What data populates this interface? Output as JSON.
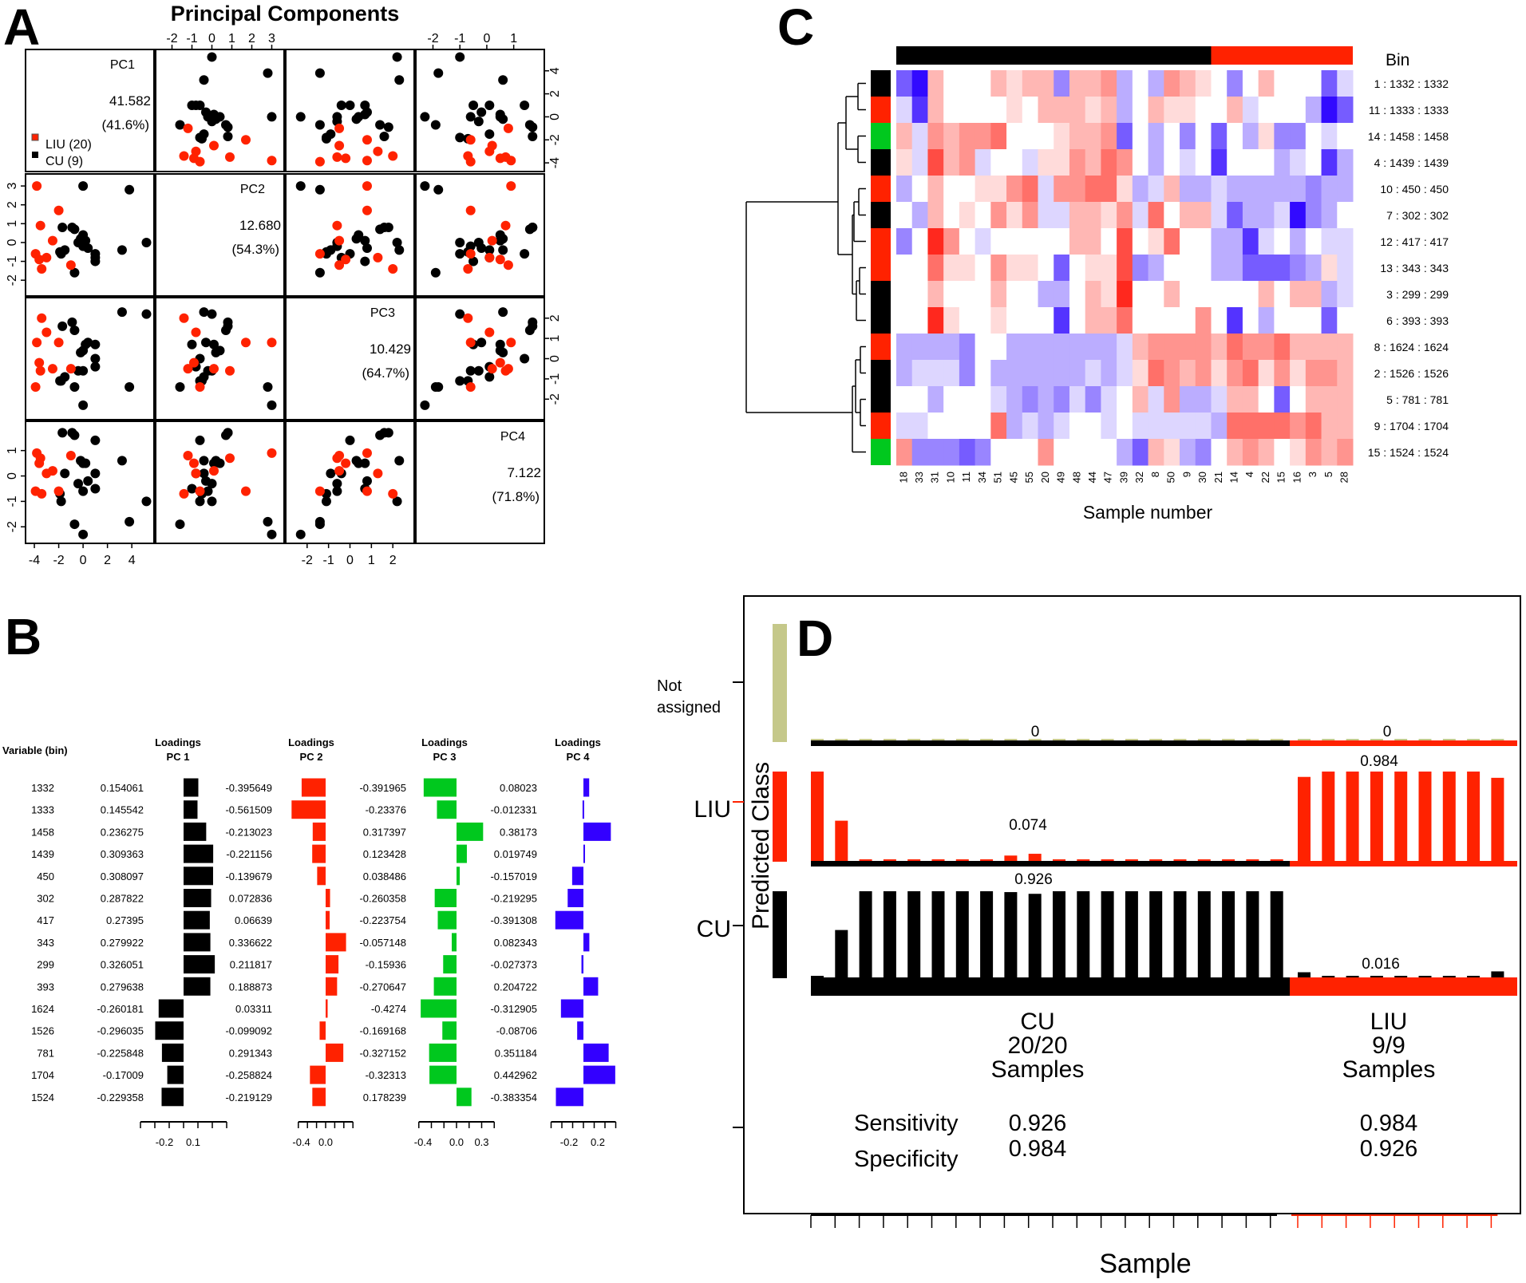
{
  "panel_labels": {
    "a": "A",
    "b": "B",
    "c": "C",
    "d": "D"
  },
  "colors": {
    "liu": "#ff2200",
    "cu": "#000000",
    "green": "#00c81e",
    "blue": "#3300ff",
    "not_assigned": "#c5c88a",
    "heat_pos": "#ff3322",
    "heat_neg": "#3311ff"
  },
  "chart_data": [
    {
      "id": "A",
      "type": "scatter",
      "title": "Principal Components",
      "legend": {
        "placement": "bottom-left of PC1 cell",
        "entries": [
          {
            "label": "LIU (20)",
            "color": "#ff2200"
          },
          {
            "label": "CU (9)",
            "color": "#000000"
          }
        ]
      },
      "components": [
        {
          "name": "PC1",
          "eigenvalue": "41.582",
          "cumulative": "(41.6%)"
        },
        {
          "name": "PC2",
          "eigenvalue": "12.680",
          "cumulative": "(54.3%)"
        },
        {
          "name": "PC3",
          "eigenvalue": "10.429",
          "cumulative": "(64.7%)"
        },
        {
          "name": "PC4",
          "eigenvalue": "7.122",
          "cumulative": "(71.8%)"
        }
      ],
      "ranges": {
        "PC1": [
          -4.2,
          5.3
        ],
        "PC2": [
          -2.5,
          3.3
        ],
        "PC3": [
          -2.7,
          2.7
        ],
        "PC4": [
          -2.4,
          1.9
        ]
      },
      "axis_ticks": {
        "PC1": [
          "-4",
          "-2",
          "0",
          "2",
          "4"
        ],
        "PC2": [
          "-2",
          "-1",
          "0",
          "1",
          "2",
          "3"
        ],
        "PC3": [
          "-2",
          "-1",
          "0",
          "1",
          "2"
        ],
        "PC4": [
          "-2",
          "-1",
          "0",
          "1"
        ]
      },
      "points": [
        {
          "g": "CU",
          "pc1": 0.0,
          "pc2": 3.0,
          "pc3": -2.3,
          "pc4": -2.3
        },
        {
          "g": "CU",
          "pc1": 3.8,
          "pc2": 2.8,
          "pc3": -1.4,
          "pc4": -1.8
        },
        {
          "g": "CU",
          "pc1": -1.7,
          "pc2": 0.8,
          "pc3": 1.6,
          "pc4": 1.7
        },
        {
          "g": "CU",
          "pc1": -0.9,
          "pc2": 0.8,
          "pc3": 1.8,
          "pc4": 1.7
        },
        {
          "g": "CU",
          "pc1": -0.7,
          "pc2": 0.7,
          "pc3": 1.4,
          "pc4": 1.6
        },
        {
          "g": "CU",
          "pc1": 0.0,
          "pc2": 0.4,
          "pc3": 0.4,
          "pc4": 0.5
        },
        {
          "g": "CU",
          "pc1": -0.2,
          "pc2": 0.2,
          "pc3": 0.3,
          "pc4": 0.6
        },
        {
          "g": "CU",
          "pc1": 0.2,
          "pc2": 0.1,
          "pc3": 0.7,
          "pc4": 0.5
        },
        {
          "g": "CU",
          "pc1": -0.4,
          "pc2": 0.0,
          "pc3": -0.6,
          "pc4": -0.3
        },
        {
          "g": "CU",
          "pc1": 0.0,
          "pc2": -0.2,
          "pc3": -0.6,
          "pc4": -0.6
        },
        {
          "g": "CU",
          "pc1": 0.4,
          "pc2": -0.3,
          "pc3": 0.8,
          "pc4": -0.2
        },
        {
          "g": "CU",
          "pc1": -1.9,
          "pc2": -0.5,
          "pc3": -1.1,
          "pc4": -0.7
        },
        {
          "g": "CU",
          "pc1": -1.8,
          "pc2": -0.6,
          "pc3": -1.1,
          "pc4": -1.0
        },
        {
          "g": "CU",
          "pc1": -1.5,
          "pc2": -0.4,
          "pc3": -0.9,
          "pc4": 0.1
        },
        {
          "g": "CU",
          "pc1": 1.0,
          "pc2": -0.6,
          "pc3": 0.0,
          "pc4": 1.4
        },
        {
          "g": "CU",
          "pc1": 1.0,
          "pc2": -0.8,
          "pc3": -0.4,
          "pc4": 0.1
        },
        {
          "g": "CU",
          "pc1": 1.0,
          "pc2": -1.0,
          "pc3": 0.7,
          "pc4": -0.5
        },
        {
          "g": "CU",
          "pc1": 3.2,
          "pc2": -0.4,
          "pc3": 2.3,
          "pc4": 0.6
        },
        {
          "g": "CU",
          "pc1": -0.7,
          "pc2": -1.6,
          "pc3": -1.4,
          "pc4": -1.9
        },
        {
          "g": "CU",
          "pc1": 5.2,
          "pc2": 0.0,
          "pc3": 2.2,
          "pc4": -1.0
        },
        {
          "g": "LIU",
          "pc1": -3.8,
          "pc2": 3.0,
          "pc3": 0.8,
          "pc4": 0.9
        },
        {
          "g": "LIU",
          "pc1": -2.0,
          "pc2": 1.7,
          "pc3": 0.8,
          "pc4": -0.6
        },
        {
          "g": "LIU",
          "pc1": -3.5,
          "pc2": 0.9,
          "pc3": -0.6,
          "pc4": 0.7
        },
        {
          "g": "LIU",
          "pc1": -2.5,
          "pc2": 0.1,
          "pc3": -0.5,
          "pc4": 0.2
        },
        {
          "g": "LIU",
          "pc1": -3.9,
          "pc2": -0.6,
          "pc3": -1.4,
          "pc4": -0.6
        },
        {
          "g": "LIU",
          "pc1": -3.6,
          "pc2": -0.9,
          "pc3": -0.2,
          "pc4": 0.5
        },
        {
          "g": "LIU",
          "pc1": -3.0,
          "pc2": -0.8,
          "pc3": 1.3,
          "pc4": 0.1
        },
        {
          "g": "LIU",
          "pc1": -3.4,
          "pc2": -1.4,
          "pc3": 2.0,
          "pc4": -0.7
        },
        {
          "g": "LIU",
          "pc1": -1.0,
          "pc2": -1.2,
          "pc3": -0.5,
          "pc4": 0.8
        }
      ]
    },
    {
      "id": "B",
      "type": "bar",
      "title": "",
      "header_variable": "Variable (bin)",
      "header_loadings": "Loadings",
      "components": [
        "PC 1",
        "PC 2",
        "PC 3",
        "PC 4"
      ],
      "colors": [
        "#000000",
        "#ff2200",
        "#00c81e",
        "#3300ff"
      ],
      "categories": [
        "1332",
        "1333",
        "1458",
        "1439",
        "450",
        "302",
        "417",
        "343",
        "299",
        "393",
        "1624",
        "1526",
        "781",
        "1704",
        "1524"
      ],
      "series": [
        {
          "name": "PC 1",
          "values": [
            "0.154061",
            "0.145542",
            "0.236275",
            "0.309363",
            "0.308097",
            "0.287822",
            "0.27395",
            "0.279922",
            "0.326051",
            "0.279638",
            "-0.260181",
            "-0.296035",
            "-0.225848",
            "-0.17009",
            "-0.229358"
          ]
        },
        {
          "name": "PC 2",
          "values": [
            "-0.395649",
            "-0.561509",
            "-0.213023",
            "-0.221156",
            "-0.139679",
            "0.072836",
            "0.06639",
            "0.336622",
            "0.211817",
            "0.188873",
            "0.03311",
            "-0.099092",
            "0.291343",
            "-0.258824",
            "-0.219129"
          ]
        },
        {
          "name": "PC 3",
          "values": [
            "-0.391965",
            "-0.23376",
            "0.317397",
            "0.123428",
            "0.038486",
            "-0.260358",
            "-0.223754",
            "-0.057148",
            "-0.15936",
            "-0.270647",
            "-0.4274",
            "-0.169168",
            "-0.327152",
            "-0.32313",
            "0.178239"
          ]
        },
        {
          "name": "PC 4",
          "values": [
            "0.08023",
            "-0.012331",
            "0.38173",
            "0.019749",
            "-0.157019",
            "-0.219295",
            "-0.391308",
            "0.082343",
            "-0.027373",
            "0.204722",
            "-0.312905",
            "-0.08706",
            "0.351184",
            "0.442962",
            "-0.383354"
          ]
        }
      ],
      "axis_ticks": [
        [
          "-0.2",
          "0.1"
        ],
        [
          "-0.4",
          "0.0"
        ],
        [
          "-0.4",
          "0.0",
          "0.3"
        ],
        [
          "-0.2",
          "0.2"
        ]
      ]
    },
    {
      "id": "C",
      "type": "heatmap",
      "xlabel": "Sample number",
      "row_header": "Bin",
      "x": [
        "18",
        "33",
        "31",
        "10",
        "11",
        "34",
        "51",
        "45",
        "55",
        "20",
        "49",
        "48",
        "44",
        "47",
        "39",
        "32",
        "8",
        "50",
        "9",
        "30",
        "21",
        "14",
        "4",
        "22",
        "15",
        "16",
        "3",
        "5",
        "28"
      ],
      "column_groups": [
        {
          "name": "CU",
          "count": 20,
          "color": "#000000"
        },
        {
          "name": "LIU",
          "count": 9,
          "color": "#ff2200"
        }
      ],
      "rows": [
        "1 : 1332 : 1332",
        "11 : 1333 : 1333",
        "14 : 1458 : 1458",
        "4 : 1439 : 1439",
        "10 :   450 : 450",
        "7 :   302 : 302",
        "12 :   417 : 417",
        "13 :   343 : 343",
        "3 :   299 : 299",
        "6 :   393 : 393",
        "8 : 1624 : 1624",
        "2 : 1526 : 1526",
        "5 :   781 : 781",
        "9 : 1704 : 1704",
        "15 : 1524 : 1524"
      ],
      "row_colors": [
        "#000000",
        "#ff2200",
        "#00c81e",
        "#000000",
        "#ff2200",
        "#000000",
        "#ff2200",
        "#ff2200",
        "#000000",
        "#000000",
        "#ff2200",
        "#000000",
        "#000000",
        "#ff2200",
        "#00c81e"
      ],
      "value_range": [
        -3,
        3
      ],
      "values": [
        [
          -2,
          -3,
          1,
          0,
          0,
          0,
          1,
          0.5,
          1,
          1,
          -1.5,
          1,
          1,
          1.5,
          -1,
          0,
          -1,
          1.5,
          1,
          0.5,
          0,
          -1.5,
          0,
          1,
          0,
          0,
          0,
          -2,
          -0.5
        ],
        [
          -0.5,
          -2.5,
          1,
          0,
          0,
          0,
          0,
          0.5,
          0,
          1,
          1,
          1,
          0.5,
          1,
          -1,
          0,
          1,
          0.5,
          0.5,
          0,
          0,
          1,
          -0.5,
          0,
          0,
          0,
          -1,
          -3,
          -2
        ],
        [
          1,
          -0.5,
          1.5,
          1,
          1.5,
          1.5,
          2,
          0,
          0,
          0,
          0.5,
          1,
          1,
          1.5,
          -2,
          0,
          -1,
          0,
          -1.5,
          0,
          -2,
          0,
          -1,
          0.5,
          -1.5,
          -1.5,
          0,
          -0.5,
          0
        ],
        [
          0.5,
          -0.5,
          2.5,
          1,
          1.5,
          -0.5,
          0,
          0,
          -0.5,
          0.5,
          0.5,
          1.5,
          1,
          2,
          1.5,
          0,
          -1,
          0,
          -0.5,
          0,
          -2.5,
          0,
          0,
          0,
          -1,
          -0.5,
          0,
          -2.5,
          -1
        ],
        [
          -1,
          0,
          1,
          0,
          0,
          0.5,
          0.5,
          1.5,
          2,
          -0.5,
          1.5,
          1.5,
          2,
          2,
          0.5,
          -1,
          -0.5,
          1,
          -1,
          -1,
          -0.5,
          -1,
          -1,
          -1,
          -1,
          -1,
          -1.5,
          -1,
          -1
        ],
        [
          0,
          -1,
          1,
          0,
          0.5,
          0,
          1.5,
          0.5,
          1.5,
          -0.5,
          -0.5,
          1,
          1,
          0.5,
          1.5,
          -0.5,
          2,
          0,
          1,
          1,
          -0.5,
          -2,
          -1,
          -1,
          -0.5,
          -3,
          -1.5,
          -1,
          0
        ],
        [
          -1.5,
          0,
          3,
          1.5,
          0,
          -0.5,
          0,
          0,
          0,
          0,
          0,
          1,
          1,
          0,
          2.5,
          0,
          0.5,
          2,
          0,
          0,
          -1,
          -1,
          -2.5,
          -0.5,
          0,
          -1,
          0,
          -0.5,
          -0.5
        ],
        [
          0,
          0,
          2,
          0.5,
          0.5,
          0,
          1.5,
          0.5,
          0.5,
          0,
          -2,
          0,
          0.5,
          0.5,
          2.5,
          -1.5,
          -1,
          0,
          0,
          0,
          -1,
          -1,
          -2,
          -2,
          -2,
          -1.5,
          -1,
          0.5,
          -0.5
        ],
        [
          0,
          0,
          1,
          0,
          0,
          0,
          1,
          0,
          0,
          -1,
          -1,
          0,
          1,
          0.5,
          3,
          0,
          0,
          1,
          0,
          0,
          0,
          0,
          0,
          1,
          0,
          1,
          1,
          -1,
          -0.5
        ],
        [
          0,
          0,
          3,
          0.5,
          0,
          0,
          0.5,
          0,
          0,
          0,
          -2.5,
          0,
          1,
          1,
          2,
          0,
          0,
          0,
          0,
          1.5,
          0,
          -2.5,
          0,
          -1,
          0,
          0,
          0,
          -2,
          0
        ],
        [
          -1,
          -1,
          -1,
          -1,
          -1.5,
          0,
          0,
          -1,
          -1,
          -1,
          -1,
          -1,
          -1,
          -1,
          -0.5,
          1,
          1.5,
          1.5,
          1.5,
          1.5,
          1,
          2,
          1.5,
          1.5,
          2,
          1,
          1,
          1,
          1
        ],
        [
          -1,
          -0.5,
          -0.5,
          -0.5,
          -1.5,
          0,
          -1,
          -1,
          -1,
          -1,
          -1,
          -1,
          -0.5,
          -1,
          -0.5,
          0.5,
          2,
          1.5,
          1,
          1.5,
          0.5,
          1.5,
          2,
          0.5,
          1.5,
          0.5,
          1.5,
          1.5,
          1
        ],
        [
          0,
          0,
          -1,
          0,
          0,
          0,
          -0.5,
          -1,
          -1.5,
          -1,
          -1.5,
          -0.5,
          -1.5,
          -0.5,
          0,
          1,
          -0.5,
          1.5,
          -1,
          -1,
          -0.5,
          1,
          1,
          0,
          -2,
          0,
          1,
          1,
          1
        ],
        [
          -0.5,
          -0.5,
          0,
          0,
          0,
          0,
          2,
          -1,
          -0.5,
          -1,
          -0.5,
          0,
          0,
          -0.5,
          0,
          -0.5,
          -0.5,
          -0.5,
          -0.5,
          -0.5,
          -1,
          2,
          2,
          2,
          2,
          1.5,
          2,
          1,
          1
        ],
        [
          1.5,
          -1.5,
          -1.5,
          -1.5,
          -2,
          -1.5,
          0,
          0,
          0,
          1.5,
          0,
          0,
          0,
          0,
          -1,
          -2,
          1,
          0.5,
          -1,
          -1.5,
          0,
          1,
          1.5,
          1,
          0,
          0.5,
          1.5,
          1,
          1.5
        ]
      ]
    },
    {
      "id": "D",
      "type": "bar",
      "ylabel": "Predicted Class",
      "xlabel": "Sample",
      "classes": [
        "Not assigned",
        "LIU",
        "CU"
      ],
      "groups": [
        {
          "name": "CU",
          "count_label": "20/20",
          "samples_label": "Samples",
          "sensitivity": "0.926",
          "specificity": "0.984",
          "n": 20
        },
        {
          "name": "LIU",
          "count_label": "9/9",
          "samples_label": "Samples",
          "sensitivity": "0.984",
          "specificity": "0.926",
          "n": 9
        }
      ],
      "row_labels": {
        "sensitivity": "Sensitivity",
        "specificity": "Specificity"
      },
      "annotations": {
        "not_assigned_cu": "0",
        "not_assigned_liu": "0",
        "liu_cu": "0.074",
        "liu_liu": "0.984",
        "cu_cu": "0.926",
        "cu_liu": "0.016"
      },
      "prob_liu": [
        1.0,
        0.45,
        0.0,
        0.0,
        0.0,
        0.0,
        0.0,
        0.0,
        0.06,
        0.08,
        0.0,
        0.0,
        0.0,
        0.0,
        0.0,
        0.0,
        0.0,
        0.0,
        0.0,
        0.0,
        0.94,
        1.0,
        1.0,
        1.0,
        1.0,
        1.0,
        1.0,
        1.0,
        0.93
      ],
      "prob_cu": [
        0.0,
        0.55,
        1.0,
        1.0,
        1.0,
        1.0,
        1.0,
        1.0,
        0.99,
        0.97,
        1.0,
        1.0,
        1.0,
        1.0,
        1.0,
        1.0,
        1.0,
        1.0,
        1.0,
        1.0,
        0.06,
        0.0,
        0.0,
        0.0,
        0.0,
        0.0,
        0.0,
        0.0,
        0.07
      ],
      "prob_not_assigned": [
        0,
        0,
        0,
        0,
        0,
        0,
        0,
        0,
        0,
        0,
        0,
        0,
        0,
        0,
        0,
        0,
        0,
        0,
        0,
        0,
        0,
        0,
        0,
        0,
        0,
        0,
        0,
        0,
        0
      ]
    }
  ]
}
